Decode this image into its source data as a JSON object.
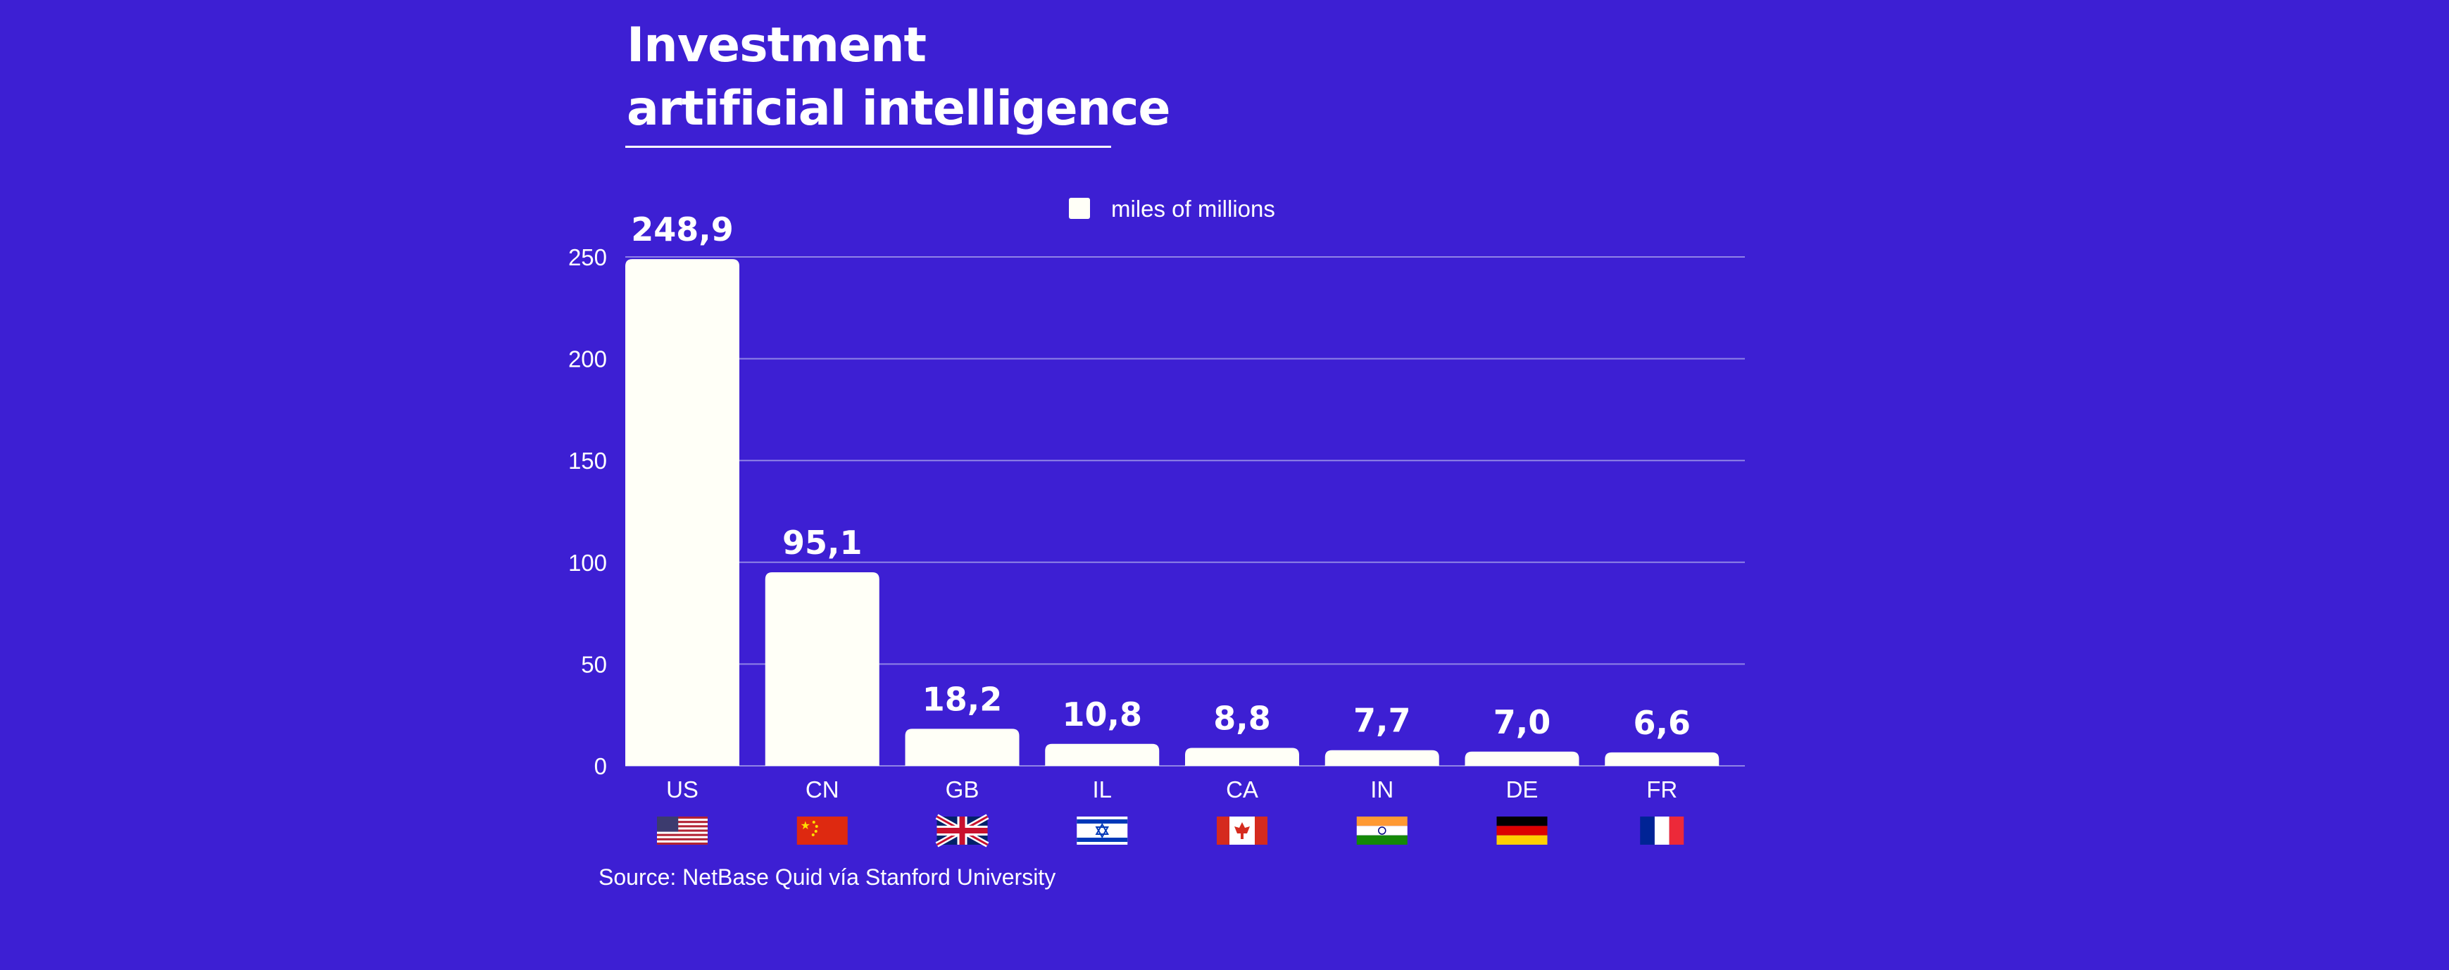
{
  "title": {
    "line1": "Investment",
    "line2": "artificial intelligence"
  },
  "source": "Source: NetBase Quid vía Stanford University",
  "colors": {
    "background": "#3d1fd3",
    "bar": "#fffff7",
    "grid": "#8f83e6",
    "text": "#ffffff"
  },
  "chart_data": {
    "type": "bar",
    "categories": [
      "US",
      "CN",
      "GB",
      "IL",
      "CA",
      "IN",
      "DE",
      "FR"
    ],
    "series": [
      {
        "name": "miles of millions",
        "values": [
          248.9,
          95.1,
          18.2,
          10.8,
          8.8,
          7.7,
          7.0,
          6.6
        ],
        "labels": [
          "248,9",
          "95,1",
          "18,2",
          "10,8",
          "8,8",
          "7,7",
          "7,0",
          "6,6"
        ]
      }
    ],
    "ylim": [
      0,
      250
    ],
    "yticks": [
      "0",
      "50",
      "100",
      "150",
      "200",
      "250"
    ],
    "grid": true,
    "legend": "top-center",
    "category_flags": [
      "us-flag-icon",
      "cn-flag-icon",
      "gb-flag-icon",
      "il-flag-icon",
      "ca-flag-icon",
      "in-flag-icon",
      "de-flag-icon",
      "fr-flag-icon"
    ]
  }
}
